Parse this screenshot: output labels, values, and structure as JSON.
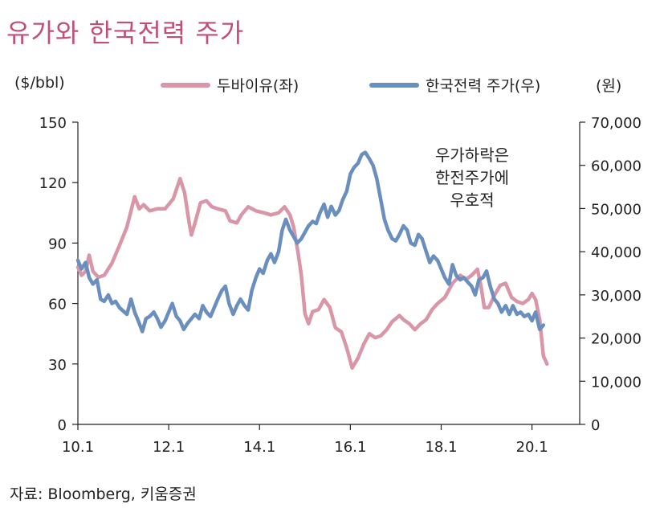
{
  "chart_data": {
    "type": "line",
    "title": "유가와 한국전력 주가",
    "left_unit": "($/bbl)",
    "right_unit": "(원)",
    "source": "자료: Bloomberg, 키움증권",
    "annotation": [
      "우가하락은",
      "한전주가에",
      "우호적"
    ],
    "x_ticks": [
      {
        "label": "10.1",
        "t": 2010.0
      },
      {
        "label": "12.1",
        "t": 2012.0
      },
      {
        "label": "14.1",
        "t": 2014.0
      },
      {
        "label": "16.1",
        "t": 2016.0
      },
      {
        "label": "18.1",
        "t": 2018.0
      },
      {
        "label": "20.1",
        "t": 2020.0
      }
    ],
    "x_range": [
      2010.0,
      2021.05
    ],
    "left_axis": {
      "range": [
        0,
        150
      ],
      "ticks": [
        "0",
        "30",
        "60",
        "90",
        "120",
        "150"
      ]
    },
    "right_axis": {
      "range": [
        0,
        70000
      ],
      "ticks": [
        "0",
        "10,000",
        "20,000",
        "30,000",
        "40,000",
        "50,000",
        "60,000",
        "70,000"
      ]
    },
    "colors": {
      "oil": "#d896a8",
      "kepco": "#6a8fbf",
      "title": "#c0507a",
      "axis": "#222222"
    },
    "series": [
      {
        "name": "두바이유(좌)",
        "axis": "left",
        "points": [
          [
            2010.0,
            78
          ],
          [
            2010.08,
            74
          ],
          [
            2010.17,
            76
          ],
          [
            2010.25,
            84
          ],
          [
            2010.33,
            76
          ],
          [
            2010.45,
            73
          ],
          [
            2010.58,
            74
          ],
          [
            2010.75,
            80
          ],
          [
            2010.92,
            89
          ],
          [
            2011.08,
            98
          ],
          [
            2011.25,
            113
          ],
          [
            2011.35,
            107
          ],
          [
            2011.45,
            109
          ],
          [
            2011.58,
            106
          ],
          [
            2011.75,
            107
          ],
          [
            2011.92,
            107
          ],
          [
            2012.1,
            112
          ],
          [
            2012.25,
            122
          ],
          [
            2012.35,
            115
          ],
          [
            2012.45,
            100
          ],
          [
            2012.5,
            94
          ],
          [
            2012.58,
            100
          ],
          [
            2012.7,
            110
          ],
          [
            2012.83,
            111
          ],
          [
            2012.95,
            108
          ],
          [
            2013.08,
            107
          ],
          [
            2013.25,
            106
          ],
          [
            2013.35,
            101
          ],
          [
            2013.5,
            100
          ],
          [
            2013.6,
            104
          ],
          [
            2013.75,
            108
          ],
          [
            2013.92,
            106
          ],
          [
            2014.1,
            105
          ],
          [
            2014.25,
            104
          ],
          [
            2014.42,
            105
          ],
          [
            2014.55,
            108
          ],
          [
            2014.67,
            104
          ],
          [
            2014.75,
            98
          ],
          [
            2014.85,
            85
          ],
          [
            2014.92,
            74
          ],
          [
            2015.0,
            55
          ],
          [
            2015.08,
            50
          ],
          [
            2015.17,
            56
          ],
          [
            2015.3,
            57
          ],
          [
            2015.42,
            62
          ],
          [
            2015.55,
            58
          ],
          [
            2015.67,
            48
          ],
          [
            2015.8,
            46
          ],
          [
            2015.92,
            38
          ],
          [
            2016.04,
            28
          ],
          [
            2016.17,
            33
          ],
          [
            2016.3,
            40
          ],
          [
            2016.42,
            45
          ],
          [
            2016.55,
            43
          ],
          [
            2016.67,
            44
          ],
          [
            2016.8,
            47
          ],
          [
            2016.92,
            51
          ],
          [
            2017.08,
            54
          ],
          [
            2017.17,
            52
          ],
          [
            2017.3,
            50
          ],
          [
            2017.42,
            47
          ],
          [
            2017.55,
            50
          ],
          [
            2017.67,
            52
          ],
          [
            2017.8,
            57
          ],
          [
            2017.92,
            60
          ],
          [
            2018.08,
            63
          ],
          [
            2018.25,
            70
          ],
          [
            2018.42,
            74
          ],
          [
            2018.55,
            72
          ],
          [
            2018.67,
            74
          ],
          [
            2018.8,
            77
          ],
          [
            2018.88,
            68
          ],
          [
            2018.95,
            58
          ],
          [
            2019.05,
            58
          ],
          [
            2019.17,
            64
          ],
          [
            2019.3,
            69
          ],
          [
            2019.42,
            70
          ],
          [
            2019.55,
            63
          ],
          [
            2019.67,
            61
          ],
          [
            2019.8,
            60
          ],
          [
            2019.92,
            62
          ],
          [
            2020.0,
            65
          ],
          [
            2020.08,
            62
          ],
          [
            2020.17,
            52
          ],
          [
            2020.25,
            34
          ],
          [
            2020.33,
            30
          ]
        ]
      },
      {
        "name": "한국전력 주가(우)",
        "axis": "right",
        "points": [
          [
            2010.0,
            38000
          ],
          [
            2010.08,
            36000
          ],
          [
            2010.17,
            37500
          ],
          [
            2010.25,
            34000
          ],
          [
            2010.33,
            32500
          ],
          [
            2010.42,
            33500
          ],
          [
            2010.5,
            29000
          ],
          [
            2010.58,
            28500
          ],
          [
            2010.67,
            30000
          ],
          [
            2010.75,
            28000
          ],
          [
            2010.83,
            28500
          ],
          [
            2010.92,
            27000
          ],
          [
            2011.08,
            25500
          ],
          [
            2011.17,
            29000
          ],
          [
            2011.25,
            26000
          ],
          [
            2011.33,
            24000
          ],
          [
            2011.42,
            21500
          ],
          [
            2011.5,
            24500
          ],
          [
            2011.58,
            25000
          ],
          [
            2011.67,
            26000
          ],
          [
            2011.75,
            24500
          ],
          [
            2011.83,
            22500
          ],
          [
            2011.92,
            24000
          ],
          [
            2012.08,
            28000
          ],
          [
            2012.17,
            25000
          ],
          [
            2012.25,
            24000
          ],
          [
            2012.33,
            22000
          ],
          [
            2012.42,
            23500
          ],
          [
            2012.5,
            24500
          ],
          [
            2012.58,
            25500
          ],
          [
            2012.67,
            24500
          ],
          [
            2012.75,
            27500
          ],
          [
            2012.83,
            26000
          ],
          [
            2012.92,
            25000
          ],
          [
            2013.08,
            29000
          ],
          [
            2013.17,
            31000
          ],
          [
            2013.25,
            32000
          ],
          [
            2013.33,
            28000
          ],
          [
            2013.42,
            25500
          ],
          [
            2013.5,
            27500
          ],
          [
            2013.58,
            29000
          ],
          [
            2013.67,
            27500
          ],
          [
            2013.75,
            26500
          ],
          [
            2013.83,
            31000
          ],
          [
            2013.92,
            34000
          ],
          [
            2014.0,
            36000
          ],
          [
            2014.08,
            35000
          ],
          [
            2014.17,
            38000
          ],
          [
            2014.25,
            39500
          ],
          [
            2014.33,
            37500
          ],
          [
            2014.42,
            40000
          ],
          [
            2014.5,
            45000
          ],
          [
            2014.58,
            47500
          ],
          [
            2014.67,
            45000
          ],
          [
            2014.75,
            43500
          ],
          [
            2014.83,
            42000
          ],
          [
            2014.92,
            43000
          ],
          [
            2015.0,
            44500
          ],
          [
            2015.08,
            46000
          ],
          [
            2015.17,
            47000
          ],
          [
            2015.25,
            46500
          ],
          [
            2015.33,
            49000
          ],
          [
            2015.42,
            51000
          ],
          [
            2015.5,
            48000
          ],
          [
            2015.58,
            50500
          ],
          [
            2015.67,
            48500
          ],
          [
            2015.75,
            49500
          ],
          [
            2015.83,
            52000
          ],
          [
            2015.92,
            54000
          ],
          [
            2016.0,
            58000
          ],
          [
            2016.08,
            59500
          ],
          [
            2016.17,
            60500
          ],
          [
            2016.25,
            62500
          ],
          [
            2016.33,
            63000
          ],
          [
            2016.42,
            61500
          ],
          [
            2016.5,
            60000
          ],
          [
            2016.58,
            57000
          ],
          [
            2016.67,
            52000
          ],
          [
            2016.75,
            47500
          ],
          [
            2016.83,
            45000
          ],
          [
            2016.92,
            43000
          ],
          [
            2017.0,
            42500
          ],
          [
            2017.08,
            44000
          ],
          [
            2017.17,
            46000
          ],
          [
            2017.25,
            45000
          ],
          [
            2017.33,
            42000
          ],
          [
            2017.42,
            41500
          ],
          [
            2017.5,
            44000
          ],
          [
            2017.58,
            43000
          ],
          [
            2017.67,
            40000
          ],
          [
            2017.75,
            37500
          ],
          [
            2017.83,
            39000
          ],
          [
            2017.92,
            38000
          ],
          [
            2018.0,
            36000
          ],
          [
            2018.08,
            34000
          ],
          [
            2018.17,
            32500
          ],
          [
            2018.25,
            37000
          ],
          [
            2018.33,
            34500
          ],
          [
            2018.42,
            33500
          ],
          [
            2018.5,
            34000
          ],
          [
            2018.58,
            33000
          ],
          [
            2018.67,
            32000
          ],
          [
            2018.75,
            30000
          ],
          [
            2018.83,
            33500
          ],
          [
            2018.92,
            34000
          ],
          [
            2019.0,
            35500
          ],
          [
            2019.08,
            32000
          ],
          [
            2019.17,
            29000
          ],
          [
            2019.25,
            28000
          ],
          [
            2019.33,
            26000
          ],
          [
            2019.42,
            27500
          ],
          [
            2019.5,
            25500
          ],
          [
            2019.58,
            27500
          ],
          [
            2019.67,
            25500
          ],
          [
            2019.75,
            26000
          ],
          [
            2019.83,
            25000
          ],
          [
            2019.92,
            25500
          ],
          [
            2020.0,
            24000
          ],
          [
            2020.08,
            26000
          ],
          [
            2020.17,
            22000
          ],
          [
            2020.25,
            23000
          ]
        ]
      }
    ]
  }
}
